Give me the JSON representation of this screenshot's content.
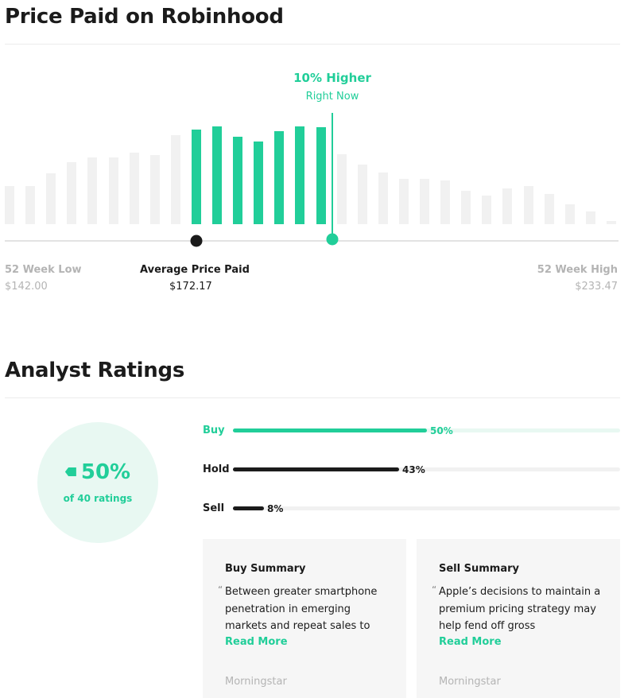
{
  "price_section": {
    "title": "Price Paid on Robinhood",
    "higher_label": "10% Higher",
    "right_now_label": "Right Now",
    "low_label": "52 Week Low",
    "low_value": "$142.00",
    "average_label": "Average Price Paid",
    "average_value": "$172.17",
    "high_label": "52 Week High",
    "high_value": "$233.47"
  },
  "chart_data": {
    "type": "bar",
    "range": [
      142.0,
      233.47
    ],
    "average_price_paid": 172.17,
    "current_price_position": 0.53,
    "values": [
      0.33,
      0.33,
      0.44,
      0.54,
      0.58,
      0.58,
      0.62,
      0.6,
      0.77,
      0.82,
      0.85,
      0.76,
      0.72,
      0.81,
      0.85,
      0.84,
      0.61,
      0.52,
      0.45,
      0.39,
      0.39,
      0.38,
      0.29,
      0.25,
      0.31,
      0.33,
      0.26,
      0.17,
      0.11,
      0.03
    ],
    "highlighted": [
      false,
      false,
      false,
      false,
      false,
      false,
      false,
      false,
      false,
      true,
      true,
      true,
      true,
      true,
      true,
      true,
      false,
      false,
      false,
      false,
      false,
      false,
      false,
      false,
      false,
      false,
      false,
      false,
      false,
      false
    ],
    "colors": {
      "highlight": "#21ce99",
      "base": "#f1f1f1",
      "average_dot": "#1b1b1b"
    }
  },
  "analyst_section": {
    "title": "Analyst Ratings",
    "buy_percent": "50%",
    "ratings_count": "of 40 ratings",
    "ratings": [
      {
        "label": "Buy",
        "value": 0.5,
        "pct": "50%"
      },
      {
        "label": "Hold",
        "value": 0.43,
        "pct": "43%"
      },
      {
        "label": "Sell",
        "value": 0.08,
        "pct": "8%"
      }
    ],
    "buy_summary": {
      "title": "Buy Summary",
      "quote": "Between greater smartphone penetration in emerging markets and repeat sales to",
      "read_more": "Read More",
      "source": "Morningstar"
    },
    "sell_summary": {
      "title": "Sell Summary",
      "quote": "Apple’s decisions to maintain a premium pricing strategy may help fend off gross",
      "read_more": "Read More",
      "source": "Morningstar"
    }
  },
  "colors": {
    "accent": "#21ce99",
    "dark": "#1b1b1b",
    "muted": "#b4b4b4"
  },
  "icons": {
    "rating_tag": "tag-icon",
    "quote": "quote-mark-icon"
  }
}
